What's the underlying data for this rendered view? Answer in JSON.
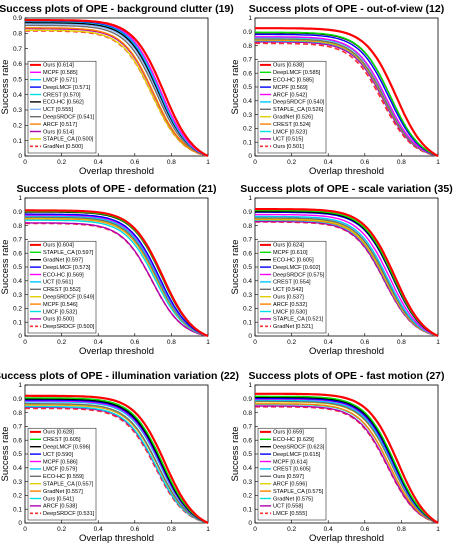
{
  "palette": {
    "Ours": "#ff0000",
    "MCPF": "#ff00ff",
    "LMCF": "#00c8ff",
    "DeepLMCF": "#0000ff",
    "CREST": "#00e0e0",
    "ECO-HC": "#000000",
    "DeepSRDCF": "#6e6e6e",
    "UCT": "#7fb2ff",
    "ARCF": "#ff8000",
    "STAPLE_CA": "#e0d000",
    "GradNet": "#ff5050"
  },
  "chart_data": [
    {
      "type": "line",
      "title": "Success plots of OPE - background clutter (19)",
      "xlabel": "Overlap threshold",
      "ylabel": "Success rate",
      "xlim": [
        0,
        1
      ],
      "ylim": [
        0,
        0.9
      ],
      "xticks": [
        "0",
        "0.2",
        "0.4",
        "0.6",
        "0.8",
        "1"
      ],
      "yticks": [
        "0",
        "0.1",
        "0.2",
        "0.3",
        "0.4",
        "0.5",
        "0.6",
        "0.7",
        "0.8",
        "0.9"
      ],
      "legend_position": "bottom-left",
      "legend": [
        {
          "name": "Ours",
          "score": "[0.614]",
          "color": "#ff0000",
          "dash": false,
          "width": 2.2
        },
        {
          "name": "MCPF",
          "score": "[0.585]",
          "color": "#ff00ff",
          "dash": false,
          "width": 1.4
        },
        {
          "name": "LMCF",
          "score": "[0.571]",
          "color": "#00c8ff",
          "dash": false,
          "width": 1.4
        },
        {
          "name": "DeepLMCF",
          "score": "[0.571]",
          "color": "#0000ff",
          "dash": false,
          "width": 1.4
        },
        {
          "name": "CREST",
          "score": "[0.570]",
          "color": "#00e0e0",
          "dash": false,
          "width": 1.4
        },
        {
          "name": "ECO-HC",
          "score": "[0.562]",
          "color": "#000000",
          "dash": false,
          "width": 1.4
        },
        {
          "name": "UCT",
          "score": "[0.555]",
          "color": "#7fb2ff",
          "dash": false,
          "width": 1.4
        },
        {
          "name": "DeepSRDCF",
          "score": "[0.541]",
          "color": "#6e6e6e",
          "dash": false,
          "width": 1.4
        },
        {
          "name": "ARCF",
          "score": "[0.517]",
          "color": "#ff8000",
          "dash": false,
          "width": 1.4
        },
        {
          "name": "Ours",
          "score": "[0.514]",
          "color": "#b000b0",
          "dash": false,
          "width": 1.4
        },
        {
          "name": "STAPLE_CA",
          "score": "[0.500]",
          "color": "#e0d000",
          "dash": false,
          "width": 1.4
        },
        {
          "name": "GradNet",
          "score": "[0.500]",
          "color": "#ff3030",
          "dash": true,
          "width": 1.6
        }
      ]
    },
    {
      "type": "line",
      "title": "Success plots of OPE - out-of-view (12)",
      "xlabel": "Overlap threshold",
      "ylabel": "Success rate",
      "xlim": [
        0,
        1
      ],
      "ylim": [
        0,
        1
      ],
      "xticks": [
        "0",
        "0.2",
        "0.4",
        "0.6",
        "0.8",
        "1"
      ],
      "yticks": [
        "0",
        "0.1",
        "0.2",
        "0.3",
        "0.4",
        "0.5",
        "0.6",
        "0.7",
        "0.8",
        "0.9",
        "1"
      ],
      "legend_position": "bottom-left",
      "legend": [
        {
          "name": "Ours",
          "score": "[0.638]",
          "color": "#ff0000",
          "dash": false,
          "width": 2.2
        },
        {
          "name": "DeepLMCF",
          "score": "[0.585]",
          "color": "#00e000",
          "dash": false,
          "width": 1.4
        },
        {
          "name": "ECO-HC",
          "score": "[0.585]",
          "color": "#000000",
          "dash": false,
          "width": 1.4
        },
        {
          "name": "MCPF",
          "score": "[0.569]",
          "color": "#0000ff",
          "dash": false,
          "width": 1.4
        },
        {
          "name": "ARCF",
          "score": "[0.542]",
          "color": "#ff00ff",
          "dash": false,
          "width": 1.4
        },
        {
          "name": "DeepSRDCF",
          "score": "[0.540]",
          "color": "#00c8ff",
          "dash": false,
          "width": 1.4
        },
        {
          "name": "STAPLE_CA",
          "score": "[0.526]",
          "color": "#6e6e6e",
          "dash": false,
          "width": 1.4
        },
        {
          "name": "GradNet",
          "score": "[0.526]",
          "color": "#e0d000",
          "dash": false,
          "width": 1.4
        },
        {
          "name": "CREST",
          "score": "[0.524]",
          "color": "#ff8000",
          "dash": false,
          "width": 1.4
        },
        {
          "name": "LMCF",
          "score": "[0.523]",
          "color": "#00e0e0",
          "dash": false,
          "width": 1.4
        },
        {
          "name": "UCT",
          "score": "[0.515]",
          "color": "#b000b0",
          "dash": false,
          "width": 1.4
        },
        {
          "name": "Ours",
          "score": "[0.501]",
          "color": "#ff3030",
          "dash": true,
          "width": 1.6
        }
      ]
    },
    {
      "type": "line",
      "title": "Success plots of OPE - deformation (21)",
      "xlabel": "Overlap threshold",
      "ylabel": "Success rate",
      "xlim": [
        0,
        1
      ],
      "ylim": [
        0,
        1
      ],
      "xticks": [
        "0",
        "0.2",
        "0.4",
        "0.6",
        "0.8",
        "1"
      ],
      "yticks": [
        "0",
        "0.1",
        "0.2",
        "0.3",
        "0.4",
        "0.5",
        "0.6",
        "0.7",
        "0.8",
        "0.9",
        "1"
      ],
      "legend_position": "bottom-left",
      "legend": [
        {
          "name": "Ours",
          "score": "[0.604]",
          "color": "#ff0000",
          "dash": false,
          "width": 2.2
        },
        {
          "name": "STAPLE_CA",
          "score": "[0.597]",
          "color": "#00e000",
          "dash": false,
          "width": 1.4
        },
        {
          "name": "GradNet",
          "score": "[0.597]",
          "color": "#000000",
          "dash": false,
          "width": 1.4
        },
        {
          "name": "DeepLMCF",
          "score": "[0.573]",
          "color": "#0000ff",
          "dash": false,
          "width": 1.4
        },
        {
          "name": "ECO-HC",
          "score": "[0.569]",
          "color": "#ff00ff",
          "dash": false,
          "width": 1.4
        },
        {
          "name": "UCT",
          "score": "[0.561]",
          "color": "#00c8ff",
          "dash": false,
          "width": 1.4
        },
        {
          "name": "CREST",
          "score": "[0.552]",
          "color": "#6e6e6e",
          "dash": false,
          "width": 1.4
        },
        {
          "name": "DeepSRDCF",
          "score": "[0.549]",
          "color": "#e0d000",
          "dash": false,
          "width": 1.4
        },
        {
          "name": "MCPF",
          "score": "[0.546]",
          "color": "#ff8000",
          "dash": false,
          "width": 1.4
        },
        {
          "name": "LMCF",
          "score": "[0.532]",
          "color": "#00e0e0",
          "dash": false,
          "width": 1.4
        },
        {
          "name": "Ours",
          "score": "[0.500]",
          "color": "#b000b0",
          "dash": false,
          "width": 1.4
        },
        {
          "name": "DeepSRDCF",
          "score": "[0.500]",
          "color": "#ff3030",
          "dash": true,
          "width": 1.6
        }
      ]
    },
    {
      "type": "line",
      "title": "Success plots of OPE - scale variation (35)",
      "xlabel": "Overlap threshold",
      "ylabel": "Success rate",
      "xlim": [
        0,
        1
      ],
      "ylim": [
        0,
        1
      ],
      "xticks": [
        "0",
        "0.2",
        "0.4",
        "0.6",
        "0.8",
        "1"
      ],
      "yticks": [
        "0",
        "0.1",
        "0.2",
        "0.3",
        "0.4",
        "0.5",
        "0.6",
        "0.7",
        "0.8",
        "0.9",
        "1"
      ],
      "legend_position": "bottom-left",
      "legend": [
        {
          "name": "Ours",
          "score": "[0.624]",
          "color": "#ff0000",
          "dash": false,
          "width": 2.2
        },
        {
          "name": "MCPF",
          "score": "[0.610]",
          "color": "#00e000",
          "dash": false,
          "width": 1.4
        },
        {
          "name": "ECO-HC",
          "score": "[0.605]",
          "color": "#000000",
          "dash": false,
          "width": 1.4
        },
        {
          "name": "DeepLMCF",
          "score": "[0.602]",
          "color": "#0000ff",
          "dash": false,
          "width": 1.4
        },
        {
          "name": "DeepSRDCF",
          "score": "[0.575]",
          "color": "#ff00ff",
          "dash": false,
          "width": 1.4
        },
        {
          "name": "CREST",
          "score": "[0.554]",
          "color": "#00c8ff",
          "dash": false,
          "width": 1.4
        },
        {
          "name": "UCT",
          "score": "[0.542]",
          "color": "#6e6e6e",
          "dash": false,
          "width": 1.4
        },
        {
          "name": "Ours",
          "score": "[0.537]",
          "color": "#e0d000",
          "dash": false,
          "width": 1.4
        },
        {
          "name": "ARCF",
          "score": "[0.532]",
          "color": "#ff8000",
          "dash": false,
          "width": 1.4
        },
        {
          "name": "LMCF",
          "score": "[0.530]",
          "color": "#00e0e0",
          "dash": false,
          "width": 1.4
        },
        {
          "name": "STAPLE_CA",
          "score": "[0.521]",
          "color": "#b000b0",
          "dash": false,
          "width": 1.4
        },
        {
          "name": "GradNet",
          "score": "[0.521]",
          "color": "#ff3030",
          "dash": true,
          "width": 1.6
        }
      ]
    },
    {
      "type": "line",
      "title": "Success plots of OPE - illumination variation (22)",
      "xlabel": "Overlap threshold",
      "ylabel": "Success rate",
      "xlim": [
        0,
        1
      ],
      "ylim": [
        0,
        1
      ],
      "xticks": [
        "0",
        "0.2",
        "0.4",
        "0.6",
        "0.8",
        "1"
      ],
      "yticks": [
        "0",
        "0.1",
        "0.2",
        "0.3",
        "0.4",
        "0.5",
        "0.6",
        "0.7",
        "0.8",
        "0.9",
        "1"
      ],
      "legend_position": "bottom-left",
      "legend": [
        {
          "name": "Ours",
          "score": "[0.628]",
          "color": "#ff0000",
          "dash": false,
          "width": 2.2
        },
        {
          "name": "CREST",
          "score": "[0.605]",
          "color": "#00e000",
          "dash": false,
          "width": 1.4
        },
        {
          "name": "DeepLMCF",
          "score": "[0.596]",
          "color": "#000000",
          "dash": false,
          "width": 1.4
        },
        {
          "name": "UCT",
          "score": "[0.590]",
          "color": "#0000ff",
          "dash": false,
          "width": 1.4
        },
        {
          "name": "MCPF",
          "score": "[0.586]",
          "color": "#ff00ff",
          "dash": false,
          "width": 1.4
        },
        {
          "name": "LMCF",
          "score": "[0.579]",
          "color": "#00c8ff",
          "dash": false,
          "width": 1.4
        },
        {
          "name": "ECO-HC",
          "score": "[0.559]",
          "color": "#6e6e6e",
          "dash": false,
          "width": 1.4
        },
        {
          "name": "STAPLE_CA",
          "score": "[0.557]",
          "color": "#e0d000",
          "dash": false,
          "width": 1.4
        },
        {
          "name": "GradNet",
          "score": "[0.557]",
          "color": "#ff8000",
          "dash": false,
          "width": 1.4
        },
        {
          "name": "Ours",
          "score": "[0.541]",
          "color": "#00e0e0",
          "dash": false,
          "width": 1.4
        },
        {
          "name": "ARCF",
          "score": "[0.538]",
          "color": "#b000b0",
          "dash": false,
          "width": 1.4
        },
        {
          "name": "DeepSRDCF",
          "score": "[0.531]",
          "color": "#ff3030",
          "dash": true,
          "width": 1.6
        }
      ]
    },
    {
      "type": "line",
      "title": "Success plots of OPE - fast motion (27)",
      "xlabel": "Overlap threshold",
      "ylabel": "Success rate",
      "xlim": [
        0,
        1
      ],
      "ylim": [
        0,
        1
      ],
      "xticks": [
        "0",
        "0.2",
        "0.4",
        "0.6",
        "0.8",
        "1"
      ],
      "yticks": [
        "0",
        "0.1",
        "0.2",
        "0.3",
        "0.4",
        "0.5",
        "0.6",
        "0.7",
        "0.8",
        "0.9",
        "1"
      ],
      "legend_position": "bottom-left",
      "legend": [
        {
          "name": "Ours",
          "score": "[0.659]",
          "color": "#ff0000",
          "dash": false,
          "width": 2.2
        },
        {
          "name": "ECO-HC",
          "score": "[0.629]",
          "color": "#00e000",
          "dash": false,
          "width": 1.4
        },
        {
          "name": "DeepSRDCF",
          "score": "[0.623]",
          "color": "#000000",
          "dash": false,
          "width": 1.4
        },
        {
          "name": "DeepLMCF",
          "score": "[0.615]",
          "color": "#0000ff",
          "dash": false,
          "width": 1.4
        },
        {
          "name": "MCPF",
          "score": "[0.614]",
          "color": "#ff00ff",
          "dash": false,
          "width": 1.4
        },
        {
          "name": "CREST",
          "score": "[0.605]",
          "color": "#00c8ff",
          "dash": false,
          "width": 1.4
        },
        {
          "name": "Ours",
          "score": "[0.597]",
          "color": "#6e6e6e",
          "dash": false,
          "width": 1.4
        },
        {
          "name": "ARCF",
          "score": "[0.596]",
          "color": "#e0d000",
          "dash": false,
          "width": 1.4
        },
        {
          "name": "STAPLE_CA",
          "score": "[0.575]",
          "color": "#ff8000",
          "dash": false,
          "width": 1.4
        },
        {
          "name": "GradNet",
          "score": "[0.575]",
          "color": "#00e0e0",
          "dash": false,
          "width": 1.4
        },
        {
          "name": "UCT",
          "score": "[0.558]",
          "color": "#b000b0",
          "dash": false,
          "width": 1.4
        },
        {
          "name": "LMCF",
          "score": "[0.555]",
          "color": "#ff3030",
          "dash": true,
          "width": 1.6
        }
      ]
    }
  ]
}
